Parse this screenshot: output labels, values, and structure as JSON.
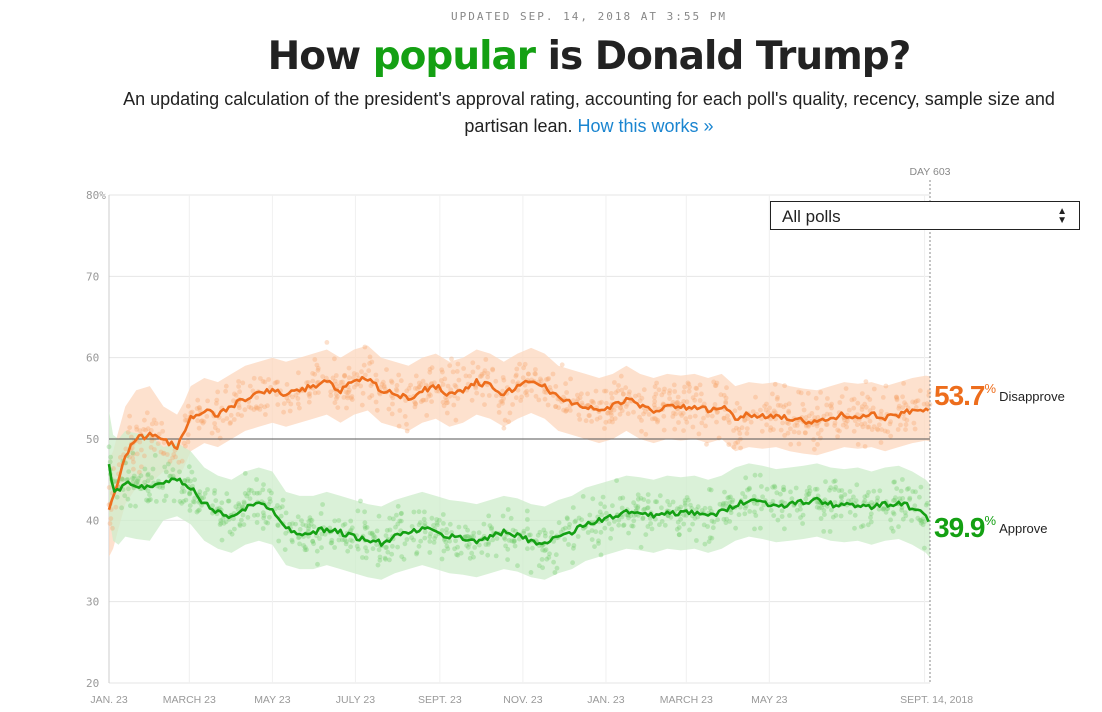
{
  "header": {
    "updated": "UPDATED SEP. 14, 2018 AT 3:55 PM",
    "title_pre": "How ",
    "title_highlight": "popular",
    "title_post": " is Donald Trump?",
    "subtitle": "An updating calculation of the president's approval rating, accounting for each poll's quality, recency, sample size and partisan lean.",
    "subtitle_link": "How this works »"
  },
  "filter": {
    "selected": "All polls"
  },
  "colors": {
    "disapprove": "#ed6d1c",
    "approve": "#14a013",
    "link": "#1a85d0"
  },
  "chart_data": {
    "type": "line",
    "title": "How popular is Donald Trump?",
    "xlabel": "",
    "ylabel": "",
    "ylim": [
      20,
      80
    ],
    "yticks": [
      "80%",
      "70",
      "60",
      "50",
      "40",
      "30",
      "20"
    ],
    "xticks": [
      "JAN. 23",
      "MARCH 23",
      "MAY 23",
      "JULY 23",
      "SEPT. 23",
      "NOV. 23",
      "JAN. 23",
      "MARCH 23",
      "MAY 23",
      "SEPT. 14, 2018"
    ],
    "day_marker": "DAY 603",
    "reference_line": 50,
    "series": [
      {
        "name": "Disapprove",
        "final_value": "53.7",
        "days": [
          0,
          3,
          7,
          12,
          20,
          30,
          40,
          50,
          55,
          60,
          70,
          80,
          90,
          100,
          110,
          120,
          130,
          140,
          150,
          160,
          170,
          180,
          190,
          200,
          210,
          220,
          230,
          240,
          250,
          260,
          270,
          280,
          290,
          300,
          310,
          320,
          330,
          340,
          350,
          360,
          370,
          380,
          390,
          400,
          410,
          420,
          430,
          440,
          450,
          460,
          470,
          480,
          490,
          500,
          510,
          520,
          530,
          540,
          550,
          560,
          570,
          580,
          590,
          600,
          603
        ],
        "values": [
          41.5,
          42.5,
          45,
          48,
          50,
          50.5,
          50,
          49,
          50.5,
          52.5,
          53.5,
          53,
          54,
          55,
          55.5,
          56,
          55.5,
          56,
          56.5,
          57,
          56,
          57,
          57.5,
          56,
          55.5,
          55,
          56,
          56.5,
          55.5,
          56,
          57,
          56.5,
          55.5,
          56.5,
          57.2,
          56.5,
          55,
          54.5,
          54,
          53.5,
          54,
          55,
          54,
          53.5,
          54,
          53.8,
          54,
          53.5,
          54,
          52.5,
          53,
          52.8,
          53,
          52.5,
          52.2,
          52,
          52.5,
          53,
          52.8,
          53,
          52.5,
          53,
          53.5,
          53.8,
          53.7
        ],
        "spread": 4
      },
      {
        "name": "Approve",
        "final_value": "39.9",
        "days": [
          0,
          3,
          7,
          12,
          20,
          30,
          40,
          50,
          55,
          60,
          70,
          80,
          90,
          100,
          110,
          120,
          130,
          140,
          150,
          160,
          170,
          180,
          190,
          200,
          210,
          220,
          230,
          240,
          250,
          260,
          270,
          280,
          290,
          300,
          310,
          320,
          330,
          340,
          350,
          360,
          370,
          380,
          390,
          400,
          410,
          420,
          430,
          440,
          450,
          460,
          470,
          480,
          490,
          500,
          510,
          520,
          530,
          540,
          550,
          560,
          570,
          580,
          590,
          600,
          603
        ],
        "values": [
          47,
          44,
          43.5,
          44.5,
          44.2,
          44,
          44.5,
          45,
          44.5,
          44,
          42,
          41,
          40.5,
          41.5,
          42,
          41.5,
          39,
          38.5,
          38.5,
          39,
          38.5,
          38,
          37.5,
          37.2,
          38,
          38.5,
          39,
          38.5,
          38,
          37.8,
          37.5,
          38,
          38.5,
          38.2,
          37.5,
          37.2,
          38,
          38.5,
          39.5,
          40,
          40.5,
          41,
          40.8,
          40.5,
          41,
          40.8,
          41,
          40.5,
          41,
          42,
          42.5,
          42.2,
          41.8,
          42,
          42.2,
          42.5,
          42,
          41.8,
          42,
          41.5,
          42,
          42.2,
          41.5,
          40.5,
          39.9
        ],
        "spread": 4.5
      }
    ]
  }
}
